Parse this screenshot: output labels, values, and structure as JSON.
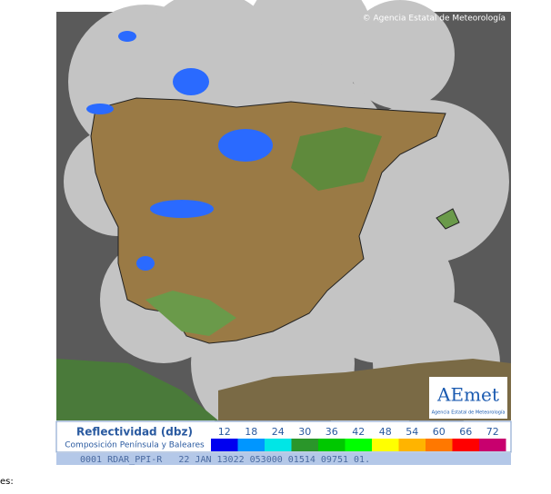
{
  "map": {
    "copyright": "© Agencia Estatal de Meteorología",
    "logo": {
      "name": "AEmet",
      "subtitle": "Agencia Estatal de Meteorología"
    }
  },
  "legend": {
    "title": "Reflectividad (dbz)",
    "subtitle": "Composición Península y Baleares",
    "scale": [
      {
        "value": 12,
        "color": "#0000f0"
      },
      {
        "value": 18,
        "color": "#0096ff"
      },
      {
        "value": 24,
        "color": "#00e6e6"
      },
      {
        "value": 30,
        "color": "#2a962a"
      },
      {
        "value": 36,
        "color": "#00c800"
      },
      {
        "value": 42,
        "color": "#00ff00"
      },
      {
        "value": 48,
        "color": "#ffff00"
      },
      {
        "value": 54,
        "color": "#ffb400"
      },
      {
        "value": 60,
        "color": "#ff7800"
      },
      {
        "value": 66,
        "color": "#ff0000"
      },
      {
        "value": 72,
        "color": "#c8006e"
      }
    ]
  },
  "status": "0001 RDAR_PPI-R   22 JAN 13022 053000 01514 09751 01.",
  "footer": "es:"
}
